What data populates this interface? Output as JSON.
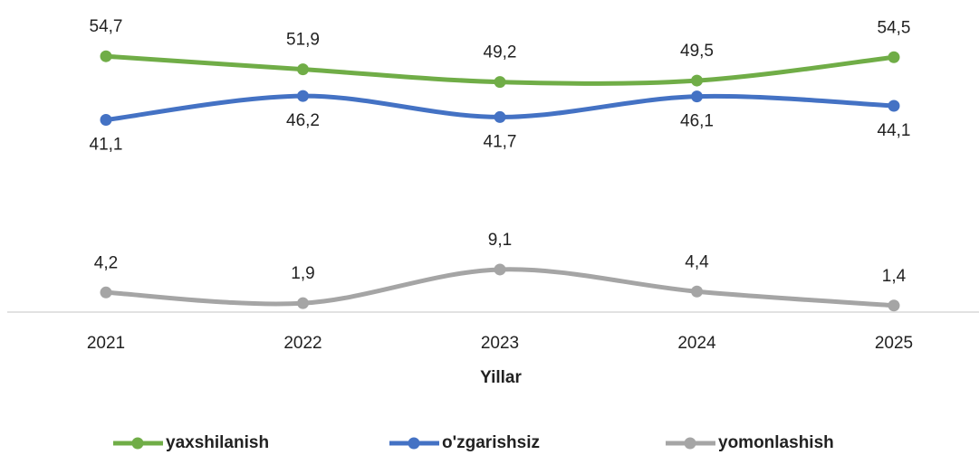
{
  "chart_data": {
    "type": "line",
    "x_label": "Yillar",
    "categories": [
      "2021",
      "2022",
      "2023",
      "2024",
      "2025"
    ],
    "series": [
      {
        "name": "yaxshilanish",
        "color": "#70ad47",
        "values": [
          54.7,
          51.9,
          49.2,
          49.5,
          54.5
        ],
        "value_labels": [
          "54,7",
          "51,9",
          "49,2",
          "49,5",
          "54,5"
        ],
        "label_position": "above"
      },
      {
        "name": "o'zgarishsiz",
        "color": "#4472c4",
        "values": [
          41.1,
          46.2,
          41.7,
          46.1,
          44.1
        ],
        "value_labels": [
          "41,1",
          "46,2",
          "41,7",
          "46,1",
          "44,1"
        ],
        "label_position": "below"
      },
      {
        "name": "yomonlashish",
        "color": "#a5a5a5",
        "values": [
          4.2,
          1.9,
          9.1,
          4.4,
          1.4
        ],
        "value_labels": [
          "4,2",
          "1,9",
          "9,1",
          "4,4",
          "1,4"
        ],
        "label_position": "above"
      }
    ],
    "smooth": true,
    "legend": "bottom"
  }
}
